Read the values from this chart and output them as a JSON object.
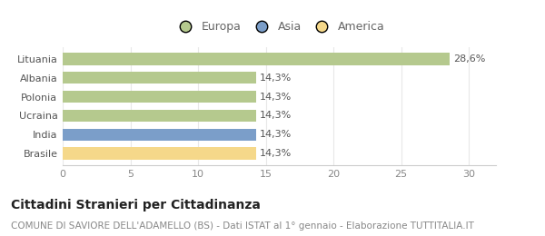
{
  "categories": [
    "Brasile",
    "India",
    "Ucraina",
    "Polonia",
    "Albania",
    "Lituania"
  ],
  "values": [
    14.3,
    14.3,
    14.3,
    14.3,
    14.3,
    28.6
  ],
  "bar_colors": [
    "#f5d88a",
    "#7b9ec9",
    "#b5c98e",
    "#b5c98e",
    "#b5c98e",
    "#b5c98e"
  ],
  "labels": [
    "14,3%",
    "14,3%",
    "14,3%",
    "14,3%",
    "14,3%",
    "28,6%"
  ],
  "xlim": [
    0,
    32
  ],
  "xticks": [
    0,
    5,
    10,
    15,
    20,
    25,
    30
  ],
  "legend_items": [
    {
      "label": "Europa",
      "color": "#b5c98e"
    },
    {
      "label": "Asia",
      "color": "#7b9ec9"
    },
    {
      "label": "America",
      "color": "#f5d88a"
    }
  ],
  "title": "Cittadini Stranieri per Cittadinanza",
  "subtitle": "COMUNE DI SAVIORE DELL'ADAMELLO (BS) - Dati ISTAT al 1° gennaio - Elaborazione TUTTITALIA.IT",
  "title_fontsize": 10,
  "subtitle_fontsize": 7.5,
  "label_fontsize": 8,
  "tick_fontsize": 8,
  "legend_fontsize": 9,
  "background_color": "#ffffff",
  "bar_height": 0.65,
  "grid_color": "#e8e8e8"
}
